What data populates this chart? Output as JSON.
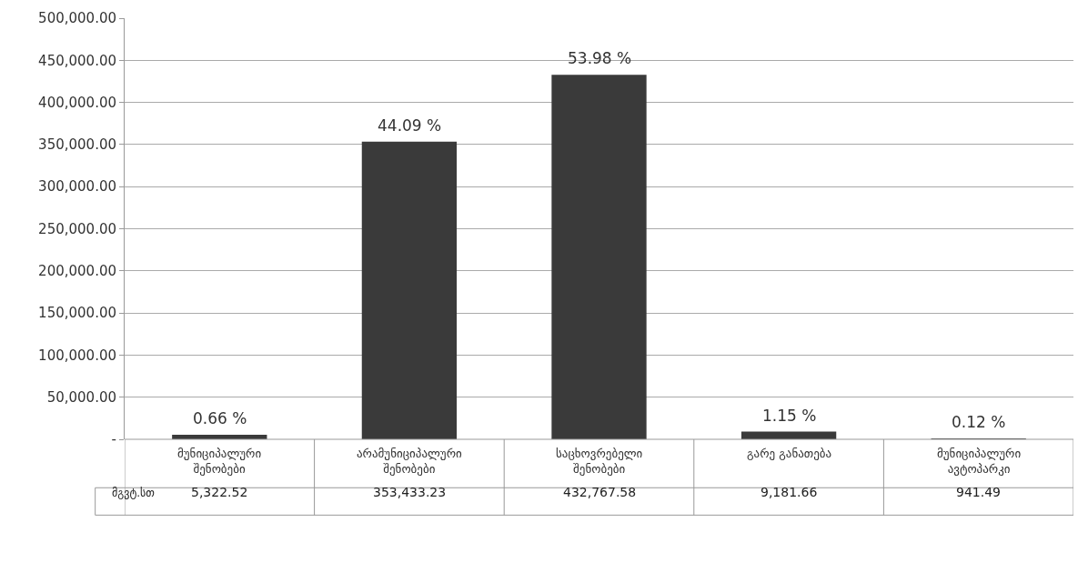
{
  "chart_data": {
    "type": "bar",
    "categories": [
      "მუნიციპალური შენობები",
      "არამუნიციპალური შენობები",
      "საცხოვრებელი შენობები",
      "გარე განათება",
      "მუნიციპალური ავტოპარკი"
    ],
    "series": [
      {
        "name": "მგვტ.სთ",
        "color": "#3a3a3a",
        "values": [
          5322.52,
          353433.23,
          432767.58,
          9181.66,
          941.49
        ],
        "value_labels": [
          "5,322.52",
          "353,433.23",
          "432,767.58",
          "9,181.66",
          "941.49"
        ]
      }
    ],
    "annotations": [
      {
        "text": "0.66 %",
        "x": "მუნიციპალური შენობები",
        "y": 5322.52
      },
      {
        "text": "44.09 %",
        "x": "არამუნიციპალური შენობები",
        "y": 353433.23
      },
      {
        "text": "53.98 %",
        "x": "საცხოვრებელი შენობები",
        "y": 432767.58
      },
      {
        "text": "1.15 %",
        "x": "გარე განათება",
        "y": 9181.66
      },
      {
        "text": "0.12 %",
        "x": "მუნიციპალური ავტოპარკი",
        "y": 941.49
      }
    ],
    "ylim": [
      0,
      500000
    ],
    "yticks": [
      {
        "value": 0,
        "label": "-"
      },
      {
        "value": 50000,
        "label": "50,000.00"
      },
      {
        "value": 100000,
        "label": "100,000.00"
      },
      {
        "value": 150000,
        "label": "150,000.00"
      },
      {
        "value": 200000,
        "label": "200,000.00"
      },
      {
        "value": 250000,
        "label": "250,000.00"
      },
      {
        "value": 300000,
        "label": "300,000.00"
      },
      {
        "value": 350000,
        "label": "350,000.00"
      },
      {
        "value": 400000,
        "label": "400,000.00"
      },
      {
        "value": 450000,
        "label": "450,000.00"
      },
      {
        "value": 500000,
        "label": "500,000.00"
      }
    ],
    "grid": "y"
  }
}
